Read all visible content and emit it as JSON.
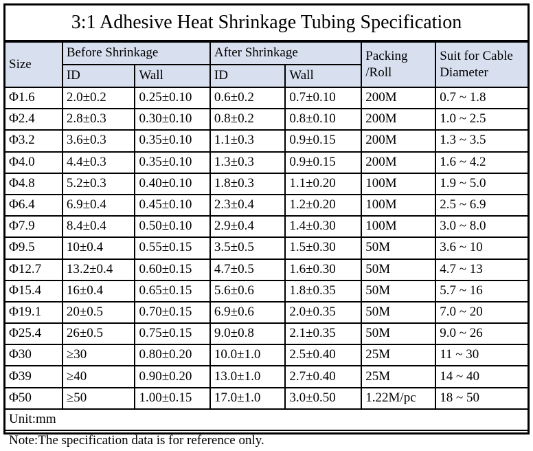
{
  "title": "3:1 Adhesive Heat Shrinkage Tubing Specification",
  "colors": {
    "header_bg": "#d8e0ef",
    "border": "#000000",
    "text": "#000000",
    "page_bg": "#ffffff"
  },
  "table": {
    "headers": {
      "size": "Size",
      "before_shrinkage": "Before Shrinkage",
      "after_shrinkage": "After Shrinkage",
      "before_id": "ID",
      "before_wall": "Wall",
      "after_id": "ID",
      "after_wall": "Wall",
      "packing_line1": "Packing",
      "packing_line2": "/Roll",
      "cable_line1": "Suit for Cable",
      "cable_line2": "Diameter"
    },
    "rows": [
      {
        "size": "Φ1.6",
        "before_id": "2.0±0.2",
        "before_wall": "0.25±0.10",
        "after_id": "0.6±0.2",
        "after_wall": "0.7±0.10",
        "packing": "200M",
        "cable": "0.7 ~ 1.8"
      },
      {
        "size": "Φ2.4",
        "before_id": "2.8±0.3",
        "before_wall": "0.30±0.10",
        "after_id": "0.8±0.2",
        "after_wall": "0.8±0.10",
        "packing": "200M",
        "cable": "1.0 ~ 2.5"
      },
      {
        "size": "Φ3.2",
        "before_id": "3.6±0.3",
        "before_wall": "0.35±0.10",
        "after_id": "1.1±0.3",
        "after_wall": "0.9±0.15",
        "packing": "200M",
        "cable": "1.3 ~ 3.5"
      },
      {
        "size": "Φ4.0",
        "before_id": "4.4±0.3",
        "before_wall": "0.35±0.10",
        "after_id": "1.3±0.3",
        "after_wall": "0.9±0.15",
        "packing": "200M",
        "cable": "1.6 ~ 4.2"
      },
      {
        "size": "Φ4.8",
        "before_id": "5.2±0.3",
        "before_wall": "0.40±0.10",
        "after_id": "1.8±0.3",
        "after_wall": "1.1±0.20",
        "packing": "100M",
        "cable": "1.9 ~ 5.0"
      },
      {
        "size": "Φ6.4",
        "before_id": "6.9±0.4",
        "before_wall": "0.45±0.10",
        "after_id": "2.3±0.4",
        "after_wall": "1.2±0.20",
        "packing": "100M",
        "cable": "2.5 ~ 6.9"
      },
      {
        "size": "Φ7.9",
        "before_id": "8.4±0.4",
        "before_wall": "0.50±0.10",
        "after_id": "2.9±0.4",
        "after_wall": "1.4±0.30",
        "packing": "100M",
        "cable": "3.0 ~ 8.0"
      },
      {
        "size": "Φ9.5",
        "before_id": "10±0.4",
        "before_wall": "0.55±0.15",
        "after_id": "3.5±0.5",
        "after_wall": "1.5±0.30",
        "packing": "50M",
        "cable": "3.6 ~ 10"
      },
      {
        "size": "Φ12.7",
        "before_id": "13.2±0.4",
        "before_wall": "0.60±0.15",
        "after_id": "4.7±0.5",
        "after_wall": "1.6±0.30",
        "packing": "50M",
        "cable": "4.7 ~ 13"
      },
      {
        "size": "Φ15.4",
        "before_id": "16±0.4",
        "before_wall": "0.65±0.15",
        "after_id": "5.6±0.6",
        "after_wall": "1.8±0.35",
        "packing": "50M",
        "cable": "5.7 ~ 16"
      },
      {
        "size": "Φ19.1",
        "before_id": "20±0.5",
        "before_wall": "0.70±0.15",
        "after_id": "6.9±0.6",
        "after_wall": "2.0±0.35",
        "packing": "50M",
        "cable": "7.0 ~ 20"
      },
      {
        "size": "Φ25.4",
        "before_id": "26±0.5",
        "before_wall": "0.75±0.15",
        "after_id": "9.0±0.8",
        "after_wall": "2.1±0.35",
        "packing": "50M",
        "cable": "9.0 ~ 26"
      },
      {
        "size": "Φ30",
        "before_id": "≥30",
        "before_wall": "0.80±0.20",
        "after_id": "10.0±1.0",
        "after_wall": "2.5±0.40",
        "packing": "25M",
        "cable": "11 ~ 30"
      },
      {
        "size": "Φ39",
        "before_id": "≥40",
        "before_wall": "0.90±0.20",
        "after_id": "13.0±1.0",
        "after_wall": "2.7±0.40",
        "packing": "25M",
        "cable": "14 ~ 40"
      },
      {
        "size": "Φ50",
        "before_id": "≥50",
        "before_wall": "1.00±0.15",
        "after_id": "17.0±1.0",
        "after_wall": "3.0±0.50",
        "packing": "1.22M/pc",
        "cable": "18 ~ 50"
      }
    ],
    "footer": {
      "unit": "Unit:mm",
      "note": "Note:The specification data is for reference only."
    }
  }
}
